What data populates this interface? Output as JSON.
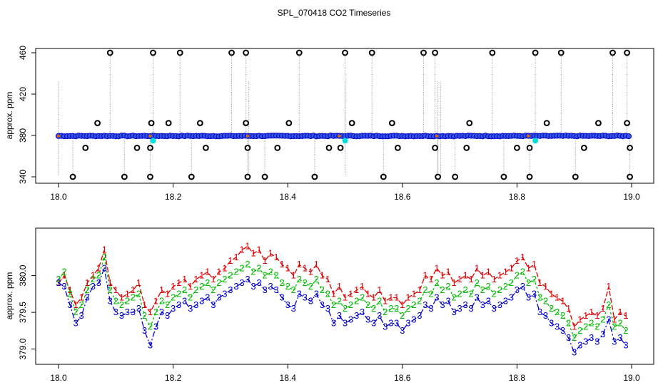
{
  "chart_data": [
    {
      "type": "scatter",
      "title": "SPL_070418  CO2 Timeseries",
      "xlabel": "",
      "ylabel": "approx. ppm",
      "xlim": [
        18.0,
        19.0
      ],
      "ylim": [
        340,
        460
      ],
      "xticks": [
        18.0,
        18.2,
        18.4,
        18.6,
        18.8,
        19.0
      ],
      "xtick_labels": [
        "18.0",
        "18.2",
        "18.4",
        "18.6",
        "18.8",
        "19.0"
      ],
      "yticks": [
        340,
        380,
        420,
        460
      ],
      "ytick_labels": [
        "340",
        "380",
        "420",
        "460"
      ],
      "baseline_ppm": 379.5,
      "baseline_span": [
        18.0,
        18.995
      ],
      "spikes_high": [
        18.09,
        18.165,
        18.212,
        18.302,
        18.327,
        18.42,
        18.5,
        18.547,
        18.637,
        18.657,
        18.757,
        18.832,
        18.877,
        18.967,
        18.992
      ],
      "spikes_low": [
        18.025,
        18.115,
        18.16,
        18.232,
        18.33,
        18.36,
        18.447,
        18.567,
        18.662,
        18.692,
        18.777,
        18.822,
        18.902,
        18.997
      ],
      "mid_high_points": [
        18.068,
        18.162,
        18.192,
        18.247,
        18.327,
        18.402,
        18.512,
        18.582,
        18.717,
        18.852,
        18.942,
        18.992
      ],
      "mid_low_points": [
        18.047,
        18.137,
        18.16,
        18.257,
        18.33,
        18.382,
        18.472,
        18.492,
        18.592,
        18.657,
        18.712,
        18.8,
        18.822,
        18.917,
        18.997
      ],
      "sample_interval": 0.005,
      "colors": {
        "baseline_points": "#0000cc",
        "baseline_fill": "#3355dd",
        "spike_points": "#000000",
        "dotted_lines": "#999999",
        "cyan_points": "#00dddd",
        "orange_marks": "#dd6600"
      }
    },
    {
      "type": "line",
      "title": "",
      "xlabel": "",
      "ylabel": "approx. ppm",
      "xlim": [
        18.0,
        19.0
      ],
      "ylim": [
        378.85,
        380.55
      ],
      "xticks": [
        18.0,
        18.2,
        18.4,
        18.6,
        18.8,
        19.0
      ],
      "xtick_labels": [
        "18.0",
        "18.2",
        "18.4",
        "18.6",
        "18.8",
        "19.0"
      ],
      "yticks": [
        379.0,
        379.5,
        380.0
      ],
      "ytick_labels": [
        "379.0",
        "379.5",
        "380.0"
      ],
      "series": [
        {
          "name": "1",
          "color": "#dd0000",
          "x": [
            18.0,
            18.01,
            18.02,
            18.03,
            18.04,
            18.05,
            18.06,
            18.07,
            18.08,
            18.09,
            18.1,
            18.11,
            18.12,
            18.13,
            18.14,
            18.15,
            18.16,
            18.17,
            18.18,
            18.19,
            18.2,
            18.21,
            18.22,
            18.23,
            18.24,
            18.25,
            18.26,
            18.27,
            18.28,
            18.29,
            18.3,
            18.31,
            18.32,
            18.33,
            18.34,
            18.35,
            18.36,
            18.37,
            18.38,
            18.39,
            18.4,
            18.41,
            18.42,
            18.43,
            18.44,
            18.45,
            18.46,
            18.47,
            18.48,
            18.49,
            18.5,
            18.51,
            18.52,
            18.53,
            18.54,
            18.55,
            18.56,
            18.57,
            18.58,
            18.59,
            18.6,
            18.61,
            18.62,
            18.63,
            18.64,
            18.65,
            18.66,
            18.67,
            18.68,
            18.69,
            18.7,
            18.71,
            18.72,
            18.73,
            18.74,
            18.75,
            18.76,
            18.77,
            18.78,
            18.79,
            18.8,
            18.81,
            18.82,
            18.83,
            18.84,
            18.85,
            18.86,
            18.87,
            18.88,
            18.89,
            18.9,
            18.91,
            18.92,
            18.93,
            18.94,
            18.95,
            18.96,
            18.97,
            18.98,
            18.99
          ],
          "y": [
            379.9,
            380.0,
            379.8,
            379.6,
            379.7,
            379.9,
            380.0,
            380.1,
            380.35,
            379.9,
            379.8,
            379.7,
            379.75,
            379.8,
            379.9,
            379.6,
            379.5,
            379.65,
            379.8,
            379.75,
            379.85,
            379.9,
            379.95,
            379.85,
            379.95,
            380.0,
            380.05,
            379.95,
            380.05,
            380.1,
            380.2,
            380.25,
            380.35,
            380.4,
            380.3,
            380.35,
            380.2,
            380.3,
            380.25,
            380.15,
            380.1,
            380.0,
            380.15,
            380.1,
            380.05,
            380.15,
            380.0,
            379.95,
            379.75,
            379.85,
            379.7,
            379.75,
            379.8,
            379.85,
            379.75,
            379.7,
            379.8,
            379.65,
            379.7,
            379.7,
            379.6,
            379.7,
            379.75,
            379.8,
            380.0,
            379.95,
            380.1,
            380.0,
            380.05,
            379.9,
            379.95,
            380.0,
            379.95,
            380.1,
            380.0,
            380.05,
            379.95,
            380.0,
            380.05,
            380.1,
            380.2,
            380.25,
            380.1,
            380.15,
            379.9,
            379.85,
            379.75,
            379.7,
            379.65,
            379.55,
            379.3,
            379.4,
            379.45,
            379.5,
            379.45,
            379.55,
            379.85,
            379.4,
            379.5,
            379.45
          ]
        },
        {
          "name": "2",
          "color": "#00bb00",
          "x": [
            18.0,
            18.01,
            18.02,
            18.03,
            18.04,
            18.05,
            18.06,
            18.07,
            18.08,
            18.09,
            18.1,
            18.11,
            18.12,
            18.13,
            18.14,
            18.15,
            18.16,
            18.17,
            18.18,
            18.19,
            18.2,
            18.21,
            18.22,
            18.23,
            18.24,
            18.25,
            18.26,
            18.27,
            18.28,
            18.29,
            18.3,
            18.31,
            18.32,
            18.33,
            18.34,
            18.35,
            18.36,
            18.37,
            18.38,
            18.39,
            18.4,
            18.41,
            18.42,
            18.43,
            18.44,
            18.45,
            18.46,
            18.47,
            18.48,
            18.49,
            18.5,
            18.51,
            18.52,
            18.53,
            18.54,
            18.55,
            18.56,
            18.57,
            18.58,
            18.59,
            18.6,
            18.61,
            18.62,
            18.63,
            18.64,
            18.65,
            18.66,
            18.67,
            18.68,
            18.69,
            18.7,
            18.71,
            18.72,
            18.73,
            18.74,
            18.75,
            18.76,
            18.77,
            18.78,
            18.79,
            18.8,
            18.81,
            18.82,
            18.83,
            18.84,
            18.85,
            18.86,
            18.87,
            18.88,
            18.89,
            18.9,
            18.91,
            18.92,
            18.93,
            18.94,
            18.95,
            18.96,
            18.97,
            18.98,
            18.99
          ],
          "y": [
            379.95,
            380.05,
            379.75,
            379.5,
            379.6,
            379.8,
            379.95,
            380.0,
            380.25,
            379.8,
            379.65,
            379.6,
            379.65,
            379.7,
            379.75,
            379.45,
            379.3,
            379.5,
            379.65,
            379.6,
            379.7,
            379.75,
            379.8,
            379.7,
            379.8,
            379.85,
            379.9,
            379.8,
            379.9,
            379.95,
            380.0,
            380.05,
            380.1,
            380.15,
            380.05,
            380.1,
            380.0,
            380.05,
            380.0,
            379.9,
            379.85,
            379.8,
            379.95,
            379.9,
            379.85,
            379.95,
            379.8,
            379.75,
            379.6,
            379.65,
            379.55,
            379.6,
            379.65,
            379.7,
            379.6,
            379.55,
            379.65,
            379.5,
            379.55,
            379.55,
            379.45,
            379.55,
            379.6,
            379.65,
            379.8,
            379.75,
            379.9,
            379.8,
            379.85,
            379.7,
            379.75,
            379.8,
            379.75,
            379.9,
            379.8,
            379.85,
            379.75,
            379.8,
            379.85,
            379.9,
            380.0,
            380.05,
            379.9,
            379.95,
            379.7,
            379.65,
            379.55,
            379.5,
            379.45,
            379.35,
            379.15,
            379.25,
            379.3,
            379.35,
            379.3,
            379.4,
            379.6,
            379.3,
            379.35,
            379.25
          ]
        },
        {
          "name": "3",
          "color": "#0000cc",
          "x": [
            18.0,
            18.01,
            18.02,
            18.03,
            18.04,
            18.05,
            18.06,
            18.07,
            18.08,
            18.09,
            18.1,
            18.11,
            18.12,
            18.13,
            18.14,
            18.15,
            18.16,
            18.17,
            18.18,
            18.19,
            18.2,
            18.21,
            18.22,
            18.23,
            18.24,
            18.25,
            18.26,
            18.27,
            18.28,
            18.29,
            18.3,
            18.31,
            18.32,
            18.33,
            18.34,
            18.35,
            18.36,
            18.37,
            18.38,
            18.39,
            18.4,
            18.41,
            18.42,
            18.43,
            18.44,
            18.45,
            18.46,
            18.47,
            18.48,
            18.49,
            18.5,
            18.51,
            18.52,
            18.53,
            18.54,
            18.55,
            18.56,
            18.57,
            18.58,
            18.59,
            18.6,
            18.61,
            18.62,
            18.63,
            18.64,
            18.65,
            18.66,
            18.67,
            18.68,
            18.69,
            18.7,
            18.71,
            18.72,
            18.73,
            18.74,
            18.75,
            18.76,
            18.77,
            18.78,
            18.79,
            18.8,
            18.81,
            18.82,
            18.83,
            18.84,
            18.85,
            18.86,
            18.87,
            18.88,
            18.89,
            18.9,
            18.91,
            18.92,
            18.93,
            18.94,
            18.95,
            18.96,
            18.97,
            18.98,
            18.99
          ],
          "y": [
            379.9,
            379.85,
            379.6,
            379.35,
            379.45,
            379.7,
            379.85,
            379.9,
            380.1,
            379.65,
            379.5,
            379.45,
            379.5,
            379.5,
            379.55,
            379.25,
            379.05,
            379.3,
            379.5,
            379.45,
            379.55,
            379.6,
            379.65,
            379.55,
            379.6,
            379.65,
            379.7,
            379.6,
            379.7,
            379.75,
            379.8,
            379.85,
            379.9,
            379.95,
            379.85,
            379.9,
            379.8,
            379.85,
            379.8,
            379.7,
            379.6,
            379.55,
            379.75,
            379.7,
            379.65,
            379.75,
            379.6,
            379.55,
            379.35,
            379.45,
            379.35,
            379.4,
            379.45,
            379.5,
            379.4,
            379.35,
            379.45,
            379.3,
            379.35,
            379.35,
            379.25,
            379.35,
            379.4,
            379.45,
            379.6,
            379.55,
            379.7,
            379.6,
            379.65,
            379.5,
            379.55,
            379.6,
            379.55,
            379.7,
            379.6,
            379.65,
            379.55,
            379.6,
            379.65,
            379.7,
            379.8,
            379.85,
            379.7,
            379.75,
            379.5,
            379.45,
            379.35,
            379.3,
            379.25,
            379.15,
            378.95,
            379.05,
            379.1,
            379.15,
            379.1,
            379.2,
            379.4,
            379.1,
            379.15,
            379.05
          ]
        }
      ]
    }
  ]
}
